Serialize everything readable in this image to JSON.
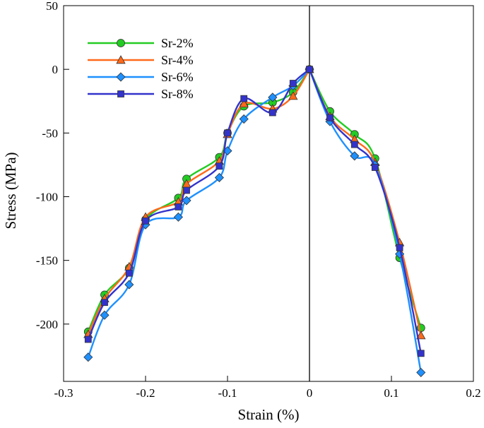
{
  "chart_data": {
    "type": "line",
    "title": "",
    "xlabel": "Strain (%)",
    "ylabel": "Stress (MPa)",
    "xlim": [
      -0.3,
      0.2
    ],
    "ylim": [
      -245,
      50
    ],
    "xticks": [
      -0.3,
      -0.2,
      -0.1,
      0,
      0.1,
      0.2
    ],
    "xtick_labels": [
      "-0.3",
      "-0.2",
      "-0.1",
      "0",
      "0.1",
      "0.2"
    ],
    "yticks": [
      -200,
      -150,
      -100,
      -50,
      0,
      50
    ],
    "ytick_labels": [
      "-200",
      "-150",
      "-100",
      "-50",
      "0",
      "50"
    ],
    "grid": false,
    "legend_position": "top-left",
    "zero_line": true,
    "series": [
      {
        "name": "Sr-2%",
        "color": "#22cc22",
        "marker": "circle",
        "x": [
          -0.27,
          -0.25,
          -0.22,
          -0.2,
          -0.16,
          -0.15,
          -0.11,
          -0.1,
          -0.08,
          -0.045,
          -0.02,
          0,
          0.025,
          0.055,
          0.08,
          0.11,
          0.136
        ],
        "y": [
          -206,
          -177,
          -156,
          -118,
          -101,
          -86,
          -69,
          -50,
          -29,
          -26,
          -18,
          0,
          -33,
          -51,
          -70,
          -148,
          -203
        ]
      },
      {
        "name": "Sr-4%",
        "color": "#ff6a1a",
        "marker": "triangle",
        "x": [
          -0.27,
          -0.25,
          -0.22,
          -0.2,
          -0.16,
          -0.15,
          -0.11,
          -0.1,
          -0.08,
          -0.045,
          -0.02,
          0,
          0.025,
          0.055,
          0.08,
          0.11,
          0.136
        ],
        "y": [
          -208,
          -180,
          -155,
          -116,
          -104,
          -90,
          -72,
          -51,
          -27,
          -31,
          -21,
          0,
          -37,
          -55,
          -73,
          -136,
          -209
        ]
      },
      {
        "name": "Sr-6%",
        "color": "#1e90ff",
        "marker": "diamond",
        "x": [
          -0.27,
          -0.25,
          -0.22,
          -0.2,
          -0.16,
          -0.15,
          -0.11,
          -0.1,
          -0.08,
          -0.045,
          -0.02,
          0,
          0.025,
          0.055,
          0.08,
          0.11,
          0.136
        ],
        "y": [
          -226,
          -193,
          -169,
          -122,
          -116,
          -103,
          -85,
          -64,
          -39,
          -22,
          -13,
          0,
          -41,
          -68,
          -75,
          -145,
          -238
        ]
      },
      {
        "name": "Sr-8%",
        "color": "#3333cc",
        "marker": "square",
        "x": [
          -0.27,
          -0.25,
          -0.22,
          -0.2,
          -0.16,
          -0.15,
          -0.11,
          -0.1,
          -0.08,
          -0.045,
          -0.02,
          0,
          0.025,
          0.055,
          0.08,
          0.11,
          0.136
        ],
        "y": [
          -212,
          -183,
          -160,
          -119,
          -108,
          -95,
          -76,
          -50,
          -23,
          -34,
          -11,
          0,
          -38,
          -59,
          -77,
          -140,
          -223
        ]
      }
    ]
  }
}
